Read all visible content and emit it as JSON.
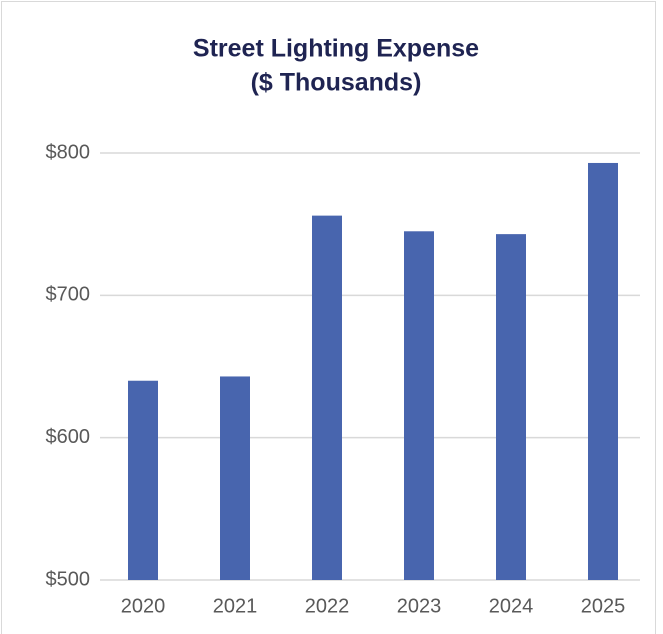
{
  "chart_data": {
    "type": "bar",
    "title": [
      "Street Lighting Expense",
      "($ Thousands)"
    ],
    "categories": [
      "2020",
      "2021",
      "2022",
      "2023",
      "2024",
      "2025"
    ],
    "values": [
      640,
      643,
      756,
      745,
      743,
      793
    ],
    "color": "#4865ae",
    "ylim": [
      500,
      800
    ],
    "yticks": [
      {
        "value": 500,
        "label": "$500"
      },
      {
        "value": 600,
        "label": "$600"
      },
      {
        "value": 700,
        "label": "$700"
      },
      {
        "value": 800,
        "label": "$800"
      }
    ],
    "grid": true
  }
}
